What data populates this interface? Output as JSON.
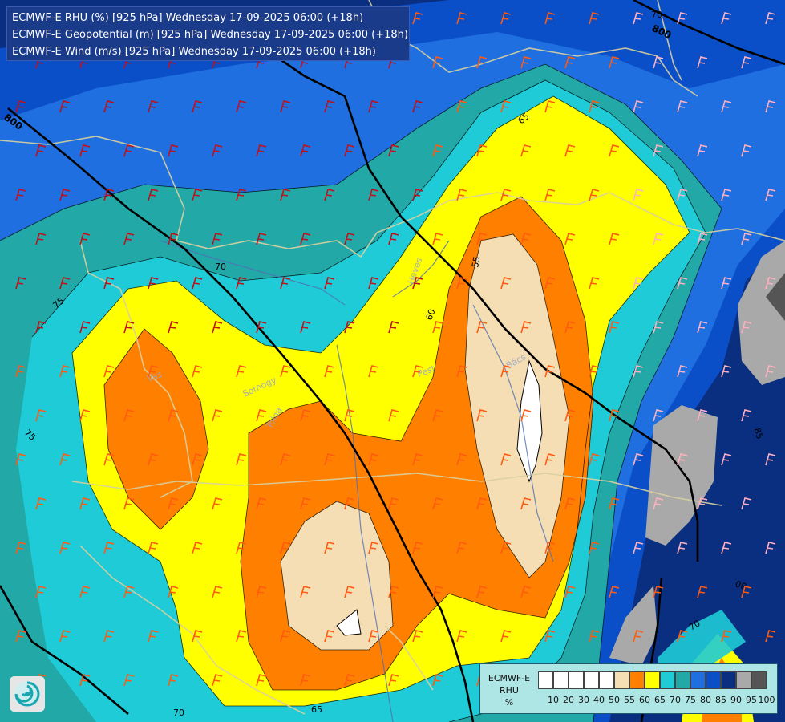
{
  "titles": {
    "line1": "ECMWF-E RHU (%) [925 hPa] Wednesday 17-09-2025 06:00 (+18h)",
    "line2": "ECMWF-E Geopotential (m) [925 hPa] Wednesday 17-09-2025 06:00 (+18h)",
    "line3": "ECMWF-E Wind (m/s) [925 hPa] Wednesday 17-09-2025 06:00 (+18h)"
  },
  "contour_labels": {
    "geo_800_a": "800",
    "geo_800_b": "800",
    "rh_70_a": "70",
    "rh_70_b": "70",
    "rh_70_c": "70",
    "rh_70_d": "70",
    "rh_75_a": "75",
    "rh_75_b": "75",
    "rh_65_a": "65",
    "rh_65_b": "65",
    "rh_60": "60",
    "rh_55": "55",
    "rh_85": "85",
    "rh_80": "80"
  },
  "place_names": {
    "vas": "Vas",
    "somogy": "Somogy",
    "tolna": "Tolna",
    "bacs": "Bács",
    "pest": "Pest",
    "heves": "Heves"
  },
  "legend": {
    "title_line1": "ECMWF-E",
    "title_line2": "RHU",
    "unit": "%",
    "colors": [
      "#ffffff",
      "#ffffff",
      "#ffffff",
      "#ffffff",
      "#ffffff",
      "#f5deb3",
      "#ff8000",
      "#ffff00",
      "#1ecbd6",
      "#23a8a8",
      "#1f6fe0",
      "#0a4fc8",
      "#0a2e80",
      "#a9a9a9",
      "#555555"
    ],
    "ticks": [
      "10",
      "20",
      "30",
      "40",
      "50",
      "55",
      "60",
      "65",
      "70",
      "75",
      "80",
      "85",
      "90",
      "95",
      "100"
    ]
  },
  "colors": {
    "rh_lt55": "#ffffff",
    "rh_55_60": "#f5deb3",
    "rh_60_65": "#ff8000",
    "rh_65_70": "#ffff00",
    "rh_70_75": "#1ecbd6",
    "rh_75_80": "#23a8a8",
    "rh_80_85": "#1f6fe0",
    "rh_85_90": "#0a4fc8",
    "rh_90_95": "#0a2e80",
    "rh_95_100": "#a9a9a9",
    "rh_100": "#555555",
    "wind_barb_strong": "#c0101a",
    "wind_barb_medium": "#ff5a10",
    "wind_barb_light": "#ffb0c0",
    "border_line": "#d8d0a0",
    "river_line": "#5a7ab8",
    "geopotential_line": "#000000"
  }
}
